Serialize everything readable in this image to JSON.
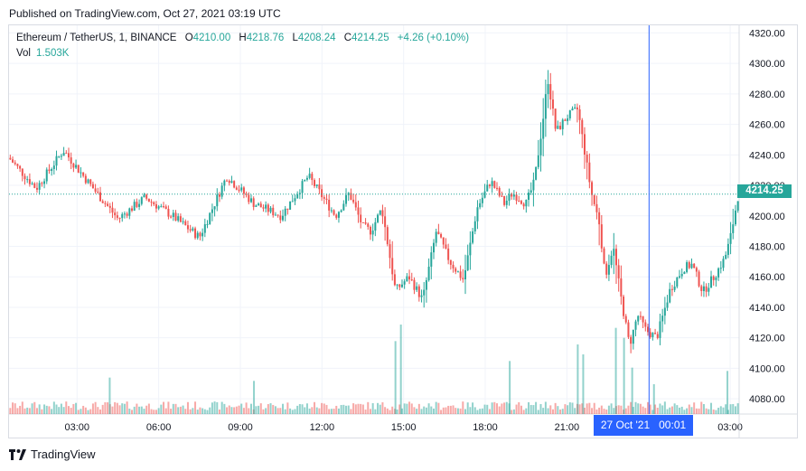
{
  "header": {
    "published": "Published on TradingView.com, Oct 27, 2021 03:19 UTC"
  },
  "legend": {
    "symbol": "Ethereum / TetherUS, 1, BINANCE",
    "open_label": "O",
    "open": "4210.00",
    "high_label": "H",
    "high": "4218.76",
    "low_label": "L",
    "low": "4208.24",
    "close_label": "C",
    "close": "4214.25",
    "change": "+4.26 (+0.10%)",
    "vol_label": "Vol",
    "vol": "1.503K"
  },
  "price_tag": "4214.25",
  "crosshair_label": "27 Oct '21   00:01",
  "footer": {
    "brand": "TradingView"
  },
  "colors": {
    "up": "#26a69a",
    "down": "#ef5350",
    "crosshair": "#2962ff",
    "grid": "#f0f3fa",
    "axis_text": "#131722"
  },
  "chart_data": {
    "type": "candlestick",
    "symbol": "Ethereum / TetherUS",
    "interval": "1",
    "exchange": "BINANCE",
    "ylim": [
      4070,
      4325
    ],
    "y_ticks": [
      4080,
      4100,
      4120,
      4140,
      4160,
      4180,
      4200,
      4220,
      4240,
      4260,
      4280,
      4300,
      4320
    ],
    "y_tick_labels": [
      "4080.00",
      "4100.00",
      "4120.00",
      "4140.00",
      "4160.00",
      "4180.00",
      "4200.00",
      "4220.00",
      "4240.00",
      "4260.00",
      "4280.00",
      "4300.00",
      "4320.00"
    ],
    "x_ticks": [
      3,
      6,
      9,
      12,
      15,
      18,
      21,
      27
    ],
    "x_tick_labels": [
      "03:00",
      "06:00",
      "09:00",
      "12:00",
      "15:00",
      "18:00",
      "21:00",
      "03:00"
    ],
    "xlim": [
      0.5,
      27.33
    ],
    "last_price": 4214.25,
    "crosshair_x": 24.02,
    "grid": true,
    "close_path": {
      "x": [
        0.5,
        1.5,
        2.5,
        3.5,
        4.5,
        5.5,
        6.5,
        7.5,
        8.5,
        9.5,
        10.5,
        11.5,
        12.5,
        13.0,
        13.5,
        13.8,
        14.2,
        14.7,
        15.2,
        15.7,
        16.2,
        16.7,
        17.2,
        17.7,
        18.2,
        18.7,
        19.0,
        19.5,
        19.8,
        20.1,
        20.3,
        20.6,
        21.0,
        21.4,
        21.7,
        21.9,
        22.2,
        22.4,
        22.7,
        23.0,
        23.3,
        23.6,
        23.9,
        24.3,
        24.8,
        25.3,
        25.6,
        26.0,
        26.4,
        26.8,
        27.0,
        27.3
      ],
      "y": [
        4238,
        4218,
        4243,
        4220,
        4198,
        4212,
        4200,
        4186,
        4226,
        4208,
        4200,
        4226,
        4200,
        4215,
        4193,
        4190,
        4205,
        4151,
        4160,
        4145,
        4190,
        4170,
        4158,
        4205,
        4223,
        4208,
        4215,
        4208,
        4222,
        4260,
        4290,
        4255,
        4265,
        4270,
        4237,
        4215,
        4195,
        4160,
        4180,
        4145,
        4115,
        4135,
        4125,
        4120,
        4152,
        4166,
        4168,
        4150,
        4160,
        4172,
        4185,
        4214
      ]
    },
    "volume_ylim": [
      0,
      3000
    ],
    "volume_spikes": [
      {
        "x": 14.7,
        "vol": 2200
      },
      {
        "x": 14.9,
        "vol": 2700
      },
      {
        "x": 18.9,
        "vol": 1600
      },
      {
        "x": 21.4,
        "vol": 2100
      },
      {
        "x": 21.6,
        "vol": 1800
      },
      {
        "x": 22.8,
        "vol": 2600
      },
      {
        "x": 23.1,
        "vol": 2300
      },
      {
        "x": 23.4,
        "vol": 1400
      },
      {
        "x": 24.2,
        "vol": 900
      },
      {
        "x": 4.2,
        "vol": 1100
      },
      {
        "x": 9.5,
        "vol": 1000
      },
      {
        "x": 26.9,
        "vol": 1300
      }
    ]
  }
}
